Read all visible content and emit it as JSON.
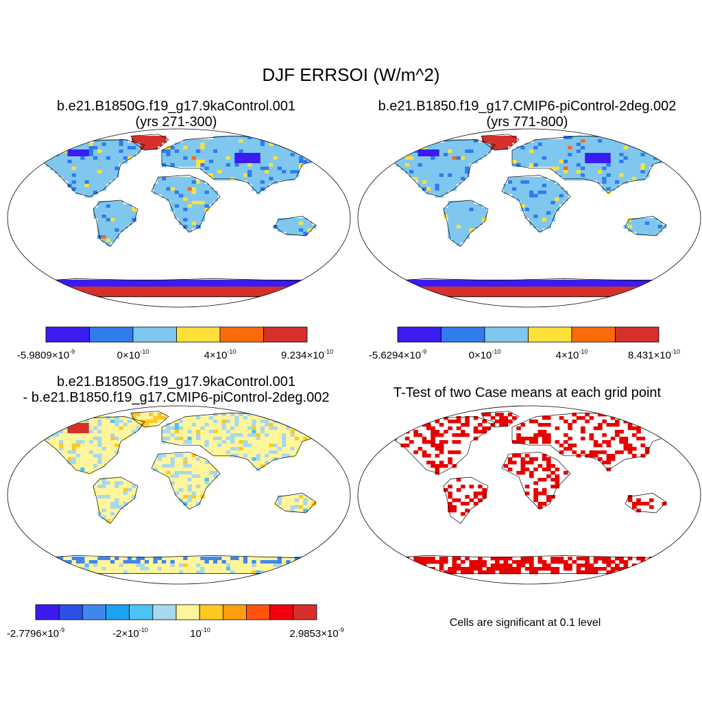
{
  "figure": {
    "title": "DJF ERRSOI (W/m^2)",
    "panels": [
      {
        "id": "case1",
        "title_line1": "b.e21.B1850G.f19_g17.9kaControl.001",
        "title_line2": "(yrs 271-300)",
        "colorbar": {
          "colors": [
            "#3b1cf0",
            "#2f7ded",
            "#7fc7ee",
            "#fde03a",
            "#fd6a0c",
            "#d5302c"
          ],
          "labels": [
            {
              "mantissa": "-5.9809",
              "exponent": "-9"
            },
            {
              "mantissa": "0",
              "exponent": "-10"
            },
            {
              "mantissa": "4",
              "exponent": "-10"
            },
            {
              "mantissa": "9.234",
              "exponent": "-10"
            }
          ]
        }
      },
      {
        "id": "case2",
        "title_line1": "b.e21.B1850.f19_g17.CMIP6-piControl-2deg.002",
        "title_line2": "(yrs 771-800)",
        "colorbar": {
          "colors": [
            "#3b1cf0",
            "#2f7ded",
            "#7fc7ee",
            "#fde03a",
            "#fd6a0c",
            "#d5302c"
          ],
          "labels": [
            {
              "mantissa": "-5.6294",
              "exponent": "-9"
            },
            {
              "mantissa": "0",
              "exponent": "-10"
            },
            {
              "mantissa": "4",
              "exponent": "-10"
            },
            {
              "mantissa": "8.431",
              "exponent": "-10"
            }
          ]
        }
      },
      {
        "id": "difference",
        "title_line1": "b.e21.B1850G.f19_g17.9kaControl.001",
        "title_line2": "- b.e21.B1850.f19_g17.CMIP6-piControl-2deg.002",
        "colorbar": {
          "colors": [
            "#3b1cf0",
            "#2c4fe6",
            "#3f87ec",
            "#1ba2f2",
            "#4cc2f5",
            "#a8d8ee",
            "#fff59a",
            "#ffc91e",
            "#ff9e0f",
            "#ff520b",
            "#f2000f",
            "#d5302c"
          ],
          "labels": [
            {
              "mantissa": "-2.7796",
              "exponent": "-9"
            },
            {
              "mantissa": "-2",
              "exponent": "-10"
            },
            {
              "mantissa": "",
              "exponent": "-10"
            },
            {
              "mantissa": "2.9853",
              "exponent": "-9"
            }
          ]
        }
      },
      {
        "id": "ttest",
        "title_line1": "T-Test of two Case means at each grid point",
        "note": "Cells are significant at 0.1 level",
        "significance_color": "#e60000"
      }
    ],
    "palette": {
      "ocean": "#ffffff",
      "land_base_case": "#7fc7ee",
      "land_base_diff": "#fff59a",
      "land_alt_diff": "#a8d8ee",
      "coastline": "#000000"
    }
  }
}
